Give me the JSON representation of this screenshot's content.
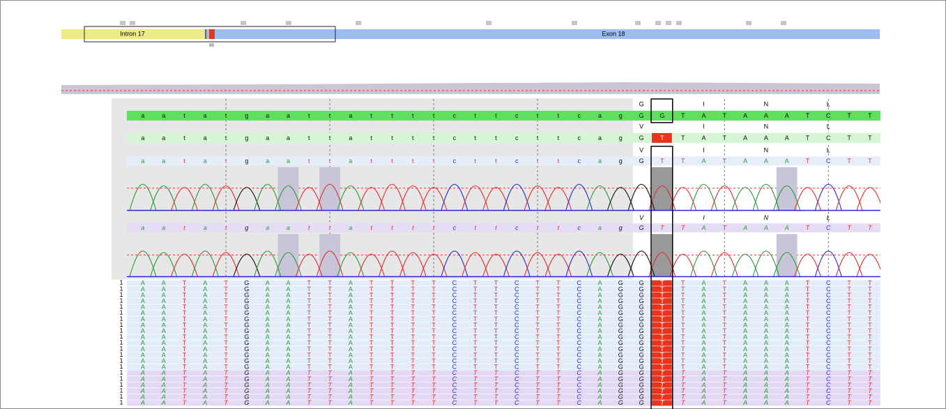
{
  "gene_track": {
    "intron_label": "Intron 17",
    "exon_label": "Exon 18"
  },
  "reference": {
    "translation": [
      null,
      null,
      null,
      null,
      null,
      null,
      null,
      null,
      null,
      null,
      null,
      null,
      null,
      null,
      null,
      null,
      null,
      null,
      null,
      null,
      null,
      null,
      null,
      null,
      "G",
      null,
      null,
      "I",
      null,
      null,
      "N",
      null,
      null,
      "L",
      null,
      null
    ],
    "bases": [
      "a",
      "a",
      "t",
      "a",
      "t",
      "g",
      "a",
      "a",
      "t",
      "t",
      "a",
      "t",
      "t",
      "t",
      "t",
      "c",
      "t",
      "t",
      "c",
      "t",
      "t",
      "c",
      "a",
      "g",
      "G",
      "G",
      "T",
      "A",
      "T",
      "A",
      "A",
      "A",
      "T",
      "C",
      "T",
      "T"
    ]
  },
  "consensus": {
    "translation": [
      null,
      null,
      null,
      null,
      null,
      null,
      null,
      null,
      null,
      null,
      null,
      null,
      null,
      null,
      null,
      null,
      null,
      null,
      null,
      null,
      null,
      null,
      null,
      null,
      "V",
      null,
      null,
      "I",
      null,
      null,
      "N",
      null,
      null,
      "L",
      null,
      null
    ],
    "bases": [
      "a",
      "a",
      "t",
      "a",
      "t",
      "g",
      "a",
      "a",
      "t",
      "t",
      "a",
      "t",
      "t",
      "t",
      "t",
      "c",
      "t",
      "t",
      "c",
      "t",
      "t",
      "c",
      "a",
      "g",
      "G",
      "T",
      "T",
      "A",
      "T",
      "A",
      "A",
      "A",
      "T",
      "C",
      "T",
      "T"
    ]
  },
  "sample_1": {
    "translation": [
      null,
      null,
      null,
      null,
      null,
      null,
      null,
      null,
      null,
      null,
      null,
      null,
      null,
      null,
      null,
      null,
      null,
      null,
      null,
      null,
      null,
      null,
      null,
      null,
      "V",
      null,
      null,
      "I",
      null,
      null,
      "N",
      null,
      null,
      "L",
      null,
      null
    ],
    "bases": [
      "a",
      "a",
      "t",
      "a",
      "t",
      "g",
      "a",
      "a",
      "t",
      "t",
      "a",
      "t",
      "t",
      "t",
      "t",
      "c",
      "t",
      "t",
      "c",
      "t",
      "t",
      "c",
      "a",
      "g",
      "G",
      "T",
      "T",
      "A",
      "T",
      "A",
      "A",
      "A",
      "T",
      "C",
      "T",
      "T"
    ]
  },
  "sample_2": {
    "translation": [
      null,
      null,
      null,
      null,
      null,
      null,
      null,
      null,
      null,
      null,
      null,
      null,
      null,
      null,
      null,
      null,
      null,
      null,
      null,
      null,
      null,
      null,
      null,
      null,
      "V",
      null,
      null,
      "I",
      null,
      null,
      "N",
      null,
      null,
      "L",
      null,
      null
    ],
    "bases": [
      "a",
      "a",
      "t",
      "a",
      "t",
      "g",
      "a",
      "a",
      "t",
      "t",
      "a",
      "t",
      "t",
      "t",
      "t",
      "c",
      "t",
      "t",
      "c",
      "t",
      "t",
      "c",
      "a",
      "g",
      "G",
      "T",
      "T",
      "A",
      "T",
      "A",
      "A",
      "A",
      "T",
      "C",
      "T",
      "T"
    ]
  },
  "reads": [
    {
      "label": "1",
      "bases": [
        "A",
        "A",
        "T",
        "A",
        "T",
        "G",
        "A",
        "A",
        "T",
        "T",
        "A",
        "T",
        "T",
        "T",
        "T",
        "C",
        "T",
        "T",
        "C",
        "T",
        "T",
        "C",
        "A",
        "G",
        "G",
        "T",
        "T",
        "A",
        "T",
        "A",
        "A",
        "A",
        "T",
        "C",
        "T",
        "T"
      ]
    },
    {
      "label": "1",
      "bases": [
        "A",
        "A",
        "T",
        "A",
        "T",
        "G",
        "A",
        "A",
        "T",
        "T",
        "A",
        "T",
        "T",
        "T",
        "T",
        "C",
        "T",
        "T",
        "C",
        "T",
        "T",
        "C",
        "A",
        "G",
        "G",
        "T",
        "T",
        "A",
        "T",
        "A",
        "A",
        "A",
        "T",
        "C",
        "T",
        "T"
      ]
    },
    {
      "label": "1",
      "bases": [
        "A",
        "A",
        "T",
        "A",
        "T",
        "G",
        "A",
        "A",
        "T",
        "T",
        "A",
        "T",
        "T",
        "T",
        "T",
        "C",
        "T",
        "T",
        "C",
        "T",
        "T",
        "C",
        "A",
        "G",
        "G",
        "T",
        "T",
        "A",
        "T",
        "A",
        "A",
        "A",
        "T",
        "C",
        "T",
        "T"
      ]
    },
    {
      "label": "1",
      "bases": [
        "A",
        "A",
        "T",
        "A",
        "T",
        "G",
        "A",
        "A",
        "T",
        "T",
        "A",
        "T",
        "T",
        "T",
        "T",
        "C",
        "T",
        "T",
        "C",
        "T",
        "T",
        "C",
        "A",
        "G",
        "G",
        "T",
        "T",
        "A",
        "T",
        "A",
        "A",
        "A",
        "T",
        "C",
        "T",
        "T"
      ]
    },
    {
      "label": "1",
      "bases": [
        "A",
        "A",
        "T",
        "A",
        "T",
        "G",
        "A",
        "A",
        "T",
        "T",
        "A",
        "T",
        "T",
        "T",
        "T",
        "C",
        "T",
        "T",
        "C",
        "T",
        "T",
        "C",
        "A",
        "G",
        "G",
        "T",
        "T",
        "A",
        "T",
        "A",
        "A",
        "A",
        "T",
        "C",
        "T",
        "T"
      ]
    },
    {
      "label": "1",
      "bases": [
        "A",
        "A",
        "T",
        "A",
        "T",
        "G",
        "A",
        "A",
        "T",
        "T",
        "A",
        "T",
        "T",
        "T",
        "T",
        "C",
        "T",
        "T",
        "C",
        "T",
        "T",
        "C",
        "A",
        "G",
        "G",
        "T",
        "T",
        "A",
        "T",
        "A",
        "A",
        "A",
        "T",
        "C",
        "T",
        "T"
      ]
    },
    {
      "label": "1",
      "bases": [
        "A",
        "A",
        "T",
        "A",
        "T",
        "G",
        "A",
        "A",
        "T",
        "T",
        "A",
        "T",
        "T",
        "T",
        "T",
        "C",
        "T",
        "T",
        "C",
        "T",
        "T",
        "C",
        "A",
        "G",
        "G",
        "T",
        "T",
        "A",
        "T",
        "A",
        "A",
        "A",
        "T",
        "C",
        "T",
        "T"
      ]
    },
    {
      "label": "1",
      "bases": [
        "A",
        "A",
        "T",
        "A",
        "T",
        "G",
        "A",
        "A",
        "T",
        "T",
        "A",
        "T",
        "T",
        "T",
        "T",
        "C",
        "T",
        "T",
        "C",
        "T",
        "T",
        "C",
        "A",
        "G",
        "G",
        "T",
        "T",
        "A",
        "T",
        "A",
        "A",
        "A",
        "T",
        "C",
        "T",
        "T"
      ]
    },
    {
      "label": "1",
      "bases": [
        "A",
        "A",
        "T",
        "A",
        "T",
        "G",
        "A",
        "A",
        "T",
        "T",
        "A",
        "T",
        "T",
        "T",
        "T",
        "C",
        "T",
        "T",
        "C",
        "T",
        "T",
        "C",
        "A",
        "G",
        "G",
        "T",
        "T",
        "A",
        "T",
        "A",
        "A",
        "A",
        "T",
        "C",
        "T",
        "T"
      ]
    },
    {
      "label": "1",
      "bases": [
        "A",
        "A",
        "T",
        "A",
        "T",
        "G",
        "A",
        "A",
        "T",
        "T",
        "A",
        "T",
        "T",
        "T",
        "T",
        "C",
        "T",
        "T",
        "C",
        "T",
        "T",
        "C",
        "A",
        "G",
        "G",
        "T",
        "T",
        "A",
        "T",
        "A",
        "A",
        "A",
        "T",
        "C",
        "T",
        "T"
      ]
    },
    {
      "label": "1",
      "bases": [
        "A",
        "A",
        "T",
        "A",
        "T",
        "G",
        "A",
        "A",
        "T",
        "T",
        "A",
        "T",
        "T",
        "T",
        "T",
        "C",
        "T",
        "T",
        "C",
        "T",
        "T",
        "C",
        "A",
        "G",
        "G",
        "T",
        "T",
        "A",
        "T",
        "A",
        "A",
        "A",
        "T",
        "C",
        "T",
        "T"
      ]
    },
    {
      "label": "1",
      "bases": [
        "A",
        "A",
        "T",
        "A",
        "T",
        "G",
        "A",
        "A",
        "T",
        "T",
        "A",
        "T",
        "T",
        "T",
        "T",
        "C",
        "T",
        "T",
        "C",
        "T",
        "T",
        "C",
        "A",
        "G",
        "G",
        "T",
        "T",
        "A",
        "T",
        "A",
        "A",
        "A",
        "T",
        "C",
        "T",
        "T"
      ]
    },
    {
      "label": "1",
      "bases": [
        "A",
        "A",
        "T",
        "A",
        "T",
        "G",
        "A",
        "A",
        "T",
        "T",
        "A",
        "T",
        "T",
        "T",
        "T",
        "C",
        "T",
        "T",
        "C",
        "T",
        "T",
        "C",
        "A",
        "G",
        "G",
        "T",
        "T",
        "A",
        "T",
        "A",
        "A",
        "A",
        "T",
        "C",
        "T",
        "T"
      ]
    },
    {
      "label": "1",
      "bases": [
        "A",
        "A",
        "T",
        "A",
        "T",
        "G",
        "A",
        "A",
        "T",
        "T",
        "A",
        "T",
        "T",
        "T",
        "T",
        "C",
        "T",
        "T",
        "C",
        "T",
        "T",
        "C",
        "A",
        "G",
        "G",
        "T",
        "T",
        "A",
        "T",
        "A",
        "A",
        "A",
        "T",
        "C",
        "T",
        "T"
      ]
    },
    {
      "label": "1",
      "bases": [
        "A",
        "A",
        "T",
        "A",
        "T",
        "G",
        "A",
        "A",
        "T",
        "T",
        "A",
        "T",
        "T",
        "T",
        "T",
        "C",
        "T",
        "T",
        "C",
        "T",
        "T",
        "C",
        "A",
        "G",
        "G",
        "T",
        "T",
        "A",
        "T",
        "A",
        "A",
        "A",
        "T",
        "C",
        "T",
        "T"
      ]
    },
    {
      "label": "1",
      "bases": [
        "A",
        "A",
        "T",
        "A",
        "T",
        "G",
        "A",
        "A",
        "T",
        "T",
        "A",
        "T",
        "T",
        "T",
        "T",
        "C",
        "T",
        "T",
        "C",
        "T",
        "T",
        "C",
        "A",
        "G",
        "G",
        "T",
        "T",
        "A",
        "T",
        "A",
        "A",
        "A",
        "T",
        "C",
        "T",
        "T"
      ]
    },
    {
      "label": "1",
      "bases": [
        "A",
        "A",
        "T",
        "A",
        "T",
        "G",
        "A",
        "A",
        "T",
        "T",
        "A",
        "T",
        "T",
        "T",
        "T",
        "C",
        "T",
        "T",
        "C",
        "T",
        "T",
        "C",
        "A",
        "G",
        "G",
        "T",
        "T",
        "A",
        "T",
        "A",
        "A",
        "A",
        "T",
        "C",
        "T",
        "T"
      ]
    },
    {
      "label": "1",
      "bases": [
        "A",
        "A",
        "T",
        "A",
        "T",
        "G",
        "A",
        "A",
        "T",
        "T",
        "A",
        "T",
        "T",
        "T",
        "T",
        "C",
        "T",
        "T",
        "C",
        "T",
        "T",
        "C",
        "A",
        "G",
        "G",
        "T",
        "T",
        "A",
        "T",
        "A",
        "A",
        "A",
        "T",
        "C",
        "T",
        "T"
      ]
    },
    {
      "label": "1",
      "bases": [
        "A",
        "A",
        "T",
        "A",
        "T",
        "G",
        "A",
        "A",
        "T",
        "T",
        "A",
        "T",
        "T",
        "T",
        "T",
        "C",
        "T",
        "T",
        "C",
        "T",
        "T",
        "C",
        "A",
        "G",
        "G",
        "T",
        "T",
        "A",
        "T",
        "A",
        "A",
        "A",
        "T",
        "C",
        "T",
        "T"
      ]
    },
    {
      "label": "1",
      "bases": [
        "A",
        "A",
        "T",
        "A",
        "T",
        "G",
        "A",
        "A",
        "T",
        "T",
        "A",
        "T",
        "T",
        "T",
        "T",
        "C",
        "T",
        "T",
        "C",
        "T",
        "T",
        "C",
        "A",
        "G",
        "G",
        "T",
        "T",
        "A",
        "T",
        "A",
        "A",
        "A",
        "T",
        "C",
        "T",
        "T"
      ]
    },
    {
      "label": "1",
      "bases": [
        "A",
        "A",
        "T",
        "A",
        "T",
        "G",
        "A",
        "A",
        "T",
        "T",
        "A",
        "T",
        "T",
        "T",
        "T",
        "C",
        "T",
        "T",
        "C",
        "T",
        "T",
        "C",
        "A",
        "G",
        "G",
        "T",
        "T",
        "A",
        "T",
        "A",
        "A",
        "A",
        "T",
        "C",
        "T",
        "T"
      ]
    }
  ]
}
